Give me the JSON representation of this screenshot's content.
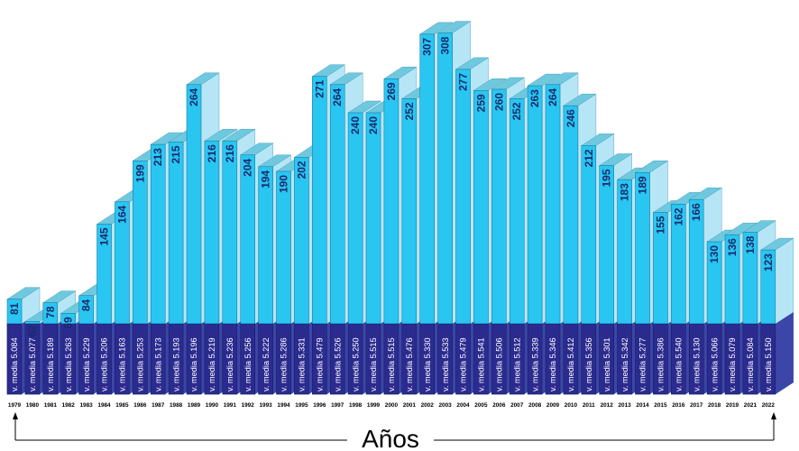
{
  "colors": {
    "front": "#29c6f2",
    "top": "#6fc9de",
    "side": "#b6e6f6",
    "band": "#2b2b8f",
    "band_side": "#3c45a8",
    "value_text": "#1a2a6b",
    "axis": "#000000"
  },
  "chart_data": {
    "type": "bar",
    "xlabel": "Años",
    "categories": [
      "1979",
      "1980",
      "1981",
      "1982",
      "1983",
      "1984",
      "1985",
      "1986",
      "1987",
      "1988",
      "1989",
      "1990",
      "1991",
      "1992",
      "1993",
      "1994",
      "1995",
      "1996",
      "1997",
      "1998",
      "1999",
      "2000",
      "2001",
      "2002",
      "2003",
      "2004",
      "2005",
      "2006",
      "2007",
      "2008",
      "2009",
      "2010",
      "2011",
      "2012",
      "2013",
      "2014",
      "2015",
      "2016",
      "2017",
      "2018",
      "2019",
      "2021",
      "2022"
    ],
    "value_labels": [
      "81",
      "62",
      "78",
      "69",
      "84",
      "145",
      "164",
      "199",
      "213",
      "215",
      "264",
      "216",
      "216",
      "204",
      "194",
      "190",
      "202",
      "271",
      "264",
      "240",
      "240",
      "269",
      "252",
      "307",
      "308",
      "277",
      "259",
      "260",
      "252",
      "263",
      "264",
      "246",
      "212",
      "195",
      "183",
      "189",
      "155",
      "162",
      "166",
      "130",
      "136",
      "138",
      "123"
    ],
    "series": [
      {
        "values": [
          81,
          62,
          78,
          69,
          84,
          145,
          164,
          199,
          213,
          215,
          264,
          216,
          216,
          204,
          194,
          190,
          202,
          271,
          264,
          240,
          240,
          269,
          252,
          307,
          308,
          277,
          259,
          260,
          252,
          263,
          264,
          246,
          212,
          195,
          183,
          189,
          155,
          162,
          166,
          130,
          136,
          138,
          123
        ]
      }
    ],
    "media_labels": [
      "v. media 5.084",
      "v. media 5.077",
      "v. media 5.189",
      "v. media 5.263",
      "v. media 5.229",
      "v. media 5.206",
      "v. media 5.163",
      "v. media 5.253",
      "v. media 5.173",
      "v. media 5.193",
      "v. media 5.196",
      "v. media 5.219",
      "v. media 5.236",
      "v. media 5.256",
      "v. media 5.222",
      "v. media 5.286",
      "v. media 5.331",
      "v. media 5.479",
      "v. media 5.526",
      "v. media 5.250",
      "v. media 5.515",
      "v. media 5.515",
      "v. media 5.476",
      "v. media 5.330",
      "v. media 5.533",
      "v. media 5.479",
      "v. media 5.541",
      "v. media 5.506",
      "v. media 5.512",
      "v. media 5.339",
      "v. media 5.346",
      "v. media 5.412",
      "v. media 5.356",
      "v. media 5.301",
      "v. media 5.342",
      "v. media 5.277",
      "v. media 5.386",
      "v. media 5.540",
      "v. media 5.130",
      "v. media 5.066",
      "v. media 5.079",
      "v. media 5.084",
      "v. media 5.150"
    ]
  }
}
